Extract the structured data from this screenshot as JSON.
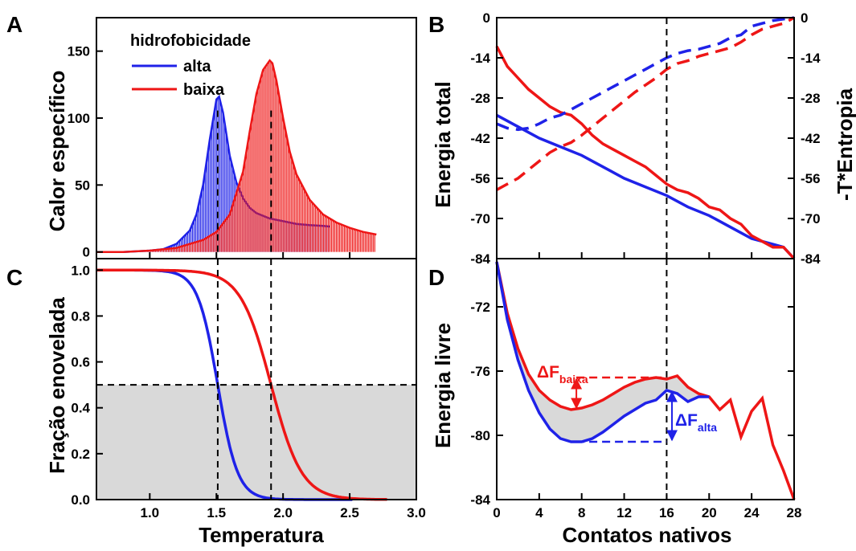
{
  "colors": {
    "blue": "#1f22e8",
    "red": "#ee1616",
    "shade": "#d9d9d9"
  },
  "chart_data": [
    {
      "panel": "A",
      "type": "area",
      "xlabel": "Temperatura",
      "ylabel": "Calor específico",
      "xlim": [
        0.6,
        3.0
      ],
      "ylim": [
        -5,
        175
      ],
      "yticks": [
        0,
        50,
        100,
        150
      ],
      "xticks": [
        1.0,
        1.5,
        2.0,
        2.5,
        3.0
      ],
      "xtick_labels_shown": false,
      "legend": {
        "title": "hidrofobicidade",
        "placement": "top-left"
      },
      "series": [
        {
          "name": "alta",
          "color": "blue",
          "peak_x": 1.51,
          "x": [
            0.6,
            0.8,
            1.0,
            1.1,
            1.2,
            1.3,
            1.35,
            1.4,
            1.45,
            1.5,
            1.52,
            1.55,
            1.6,
            1.65,
            1.7,
            1.75,
            1.8,
            1.9,
            2.0,
            2.1,
            2.2,
            2.3,
            2.35
          ],
          "values": [
            0,
            0,
            1,
            2,
            6,
            16,
            28,
            50,
            84,
            114,
            116,
            104,
            72,
            52,
            40,
            33,
            29,
            25,
            23,
            21,
            20,
            19.5,
            19
          ]
        },
        {
          "name": "baixa",
          "color": "red",
          "peak_x": 1.91,
          "x": [
            0.6,
            0.8,
            1.0,
            1.2,
            1.4,
            1.5,
            1.6,
            1.7,
            1.75,
            1.8,
            1.85,
            1.9,
            1.92,
            1.95,
            2.0,
            2.05,
            2.1,
            2.2,
            2.3,
            2.4,
            2.5,
            2.6,
            2.7
          ],
          "values": [
            0,
            0,
            1,
            3,
            9,
            15,
            28,
            60,
            90,
            118,
            136,
            143,
            141,
            128,
            100,
            75,
            58,
            39,
            28,
            22,
            18,
            15,
            13
          ]
        }
      ],
      "vlines": [
        1.51,
        1.91
      ]
    },
    {
      "panel": "B",
      "type": "line",
      "xlabel": "",
      "ylabel": "Energia total",
      "ylabel_right": "-T*Entropia",
      "xlim": [
        0,
        28
      ],
      "ylim": [
        -84,
        0
      ],
      "yticks": [
        0,
        -14,
        -28,
        -42,
        -56,
        -70,
        -84
      ],
      "xtick_labels_shown": false,
      "vline": 16,
      "series": [
        {
          "name": "alta",
          "style": "solid",
          "color": "blue",
          "x": [
            0,
            2,
            4,
            6,
            8,
            10,
            12,
            14,
            16,
            18,
            20,
            22,
            24,
            26,
            27,
            28
          ],
          "values": [
            -34,
            -38,
            -42,
            -45,
            -48,
            -52,
            -56,
            -59,
            -62,
            -66,
            -69,
            -73,
            -77,
            -79,
            -80,
            -84
          ]
        },
        {
          "name": "baixa",
          "style": "solid",
          "color": "red",
          "x": [
            0,
            1,
            2,
            3,
            4,
            5,
            6,
            7,
            8,
            9,
            10,
            11,
            12,
            13,
            14,
            15,
            16,
            17,
            18,
            19,
            20,
            21,
            22,
            23,
            24,
            25,
            26,
            27,
            28
          ],
          "values": [
            -10,
            -17,
            -21,
            -25,
            -28,
            -31,
            -33,
            -34,
            -37,
            -41,
            -44,
            -46,
            -48,
            -50,
            -52,
            -55,
            -58,
            -60,
            -61,
            -63,
            -66,
            -67,
            -70,
            -72,
            -76,
            -78,
            -80,
            -80,
            -84
          ]
        },
        {
          "name": "alta",
          "style": "dashed",
          "color": "blue",
          "x": [
            0,
            1,
            2,
            3,
            4,
            5,
            6,
            7,
            8,
            9,
            10,
            11,
            12,
            13,
            14,
            15,
            16,
            17,
            18,
            19,
            20,
            21,
            22,
            23,
            24,
            25,
            26,
            27,
            28
          ],
          "values": [
            -37,
            -38.5,
            -39,
            -38.5,
            -37,
            -35,
            -34,
            -32,
            -30,
            -28,
            -26,
            -24,
            -22,
            -20,
            -18,
            -16,
            -14,
            -12.5,
            -11.5,
            -11,
            -10,
            -9,
            -7,
            -6,
            -3,
            -2,
            -1,
            -0.5,
            0
          ]
        },
        {
          "name": "baixa",
          "style": "dashed",
          "color": "red",
          "x": [
            0,
            1,
            2,
            3,
            4,
            5,
            6,
            7,
            8,
            9,
            10,
            11,
            12,
            13,
            14,
            15,
            16,
            17,
            18,
            19,
            20,
            21,
            22,
            23,
            24,
            25,
            26,
            27,
            28
          ],
          "values": [
            -60,
            -58,
            -56,
            -53,
            -50,
            -47,
            -45,
            -43.5,
            -41,
            -38,
            -35,
            -32,
            -29,
            -26,
            -23.5,
            -21,
            -18,
            -16,
            -15,
            -13.5,
            -12.5,
            -11.5,
            -10.5,
            -8.5,
            -6,
            -4,
            -3,
            -2,
            0
          ]
        }
      ]
    },
    {
      "panel": "C",
      "type": "line",
      "xlabel": "Temperatura",
      "ylabel": "Fração enovelada",
      "xlim": [
        0.6,
        3.0
      ],
      "ylim": [
        0,
        1.05
      ],
      "yticks": [
        0.0,
        0.2,
        0.4,
        0.6,
        0.8,
        1.0
      ],
      "xticks": [
        1.0,
        1.5,
        2.0,
        2.5,
        3.0
      ],
      "tick_labels_x": [
        "1.0",
        "1.5",
        "2.0",
        "2.5",
        "3.0"
      ],
      "tick_labels_y": [
        "0.0",
        "0.2",
        "0.4",
        "0.6",
        "0.8",
        "1.0"
      ],
      "shaded_below": 0.5,
      "hline": 0.5,
      "vlines": [
        1.51,
        1.91
      ],
      "series": [
        {
          "name": "alta",
          "color": "blue",
          "Tm": 1.51,
          "width": 0.075,
          "xmax": 2.52
        },
        {
          "name": "baixa",
          "color": "red",
          "Tm": 1.91,
          "width": 0.115,
          "xmax": 2.78
        }
      ]
    },
    {
      "panel": "D",
      "type": "line",
      "xlabel": "Contatos nativos",
      "ylabel": "Energia livre",
      "xlim": [
        0,
        28
      ],
      "ylim": [
        -84,
        -69
      ],
      "yticks": [
        -72,
        -76,
        -80,
        -84
      ],
      "xticks": [
        0,
        4,
        8,
        12,
        16,
        20,
        24,
        28
      ],
      "tick_labels_x": [
        "0",
        "4",
        "8",
        "12",
        "16",
        "20",
        "24",
        "28"
      ],
      "tick_labels_y": [
        "-72",
        "-76",
        "-80",
        "-84"
      ],
      "vline": 16,
      "series": [
        {
          "name": "alta",
          "color": "blue",
          "x": [
            0,
            1,
            2,
            3,
            4,
            5,
            6,
            7,
            8,
            9,
            10,
            11,
            12,
            13,
            14,
            15,
            16,
            17,
            18,
            19,
            20
          ],
          "values": [
            -69.2,
            -72.8,
            -75.3,
            -77.2,
            -78.6,
            -79.6,
            -80.2,
            -80.4,
            -80.4,
            -80.2,
            -79.8,
            -79.3,
            -78.8,
            -78.4,
            -78.0,
            -77.8,
            -77.2,
            -77.4,
            -77.9,
            -77.6,
            -77.6
          ]
        },
        {
          "name": "baixa",
          "color": "red",
          "x": [
            0,
            1,
            2,
            3,
            4,
            5,
            6,
            7,
            8,
            9,
            10,
            11,
            12,
            13,
            14,
            15,
            16,
            17,
            18,
            19,
            20,
            21,
            22,
            23,
            24,
            25,
            26,
            27,
            28
          ],
          "values": [
            -69.2,
            -72.4,
            -74.6,
            -76.2,
            -77.2,
            -77.8,
            -78.2,
            -78.4,
            -78.3,
            -78.1,
            -77.8,
            -77.4,
            -77.0,
            -76.7,
            -76.5,
            -76.4,
            -76.5,
            -76.3,
            -77.0,
            -77.4,
            -77.6,
            -78.4,
            -77.8,
            -80.1,
            -78.5,
            -77.7,
            -80.6,
            -82.2,
            -84.0
          ]
        }
      ],
      "annotations": [
        {
          "label_main": "ΔF",
          "label_sub": "baixa",
          "color": "red",
          "x_arrow": 7.5,
          "y_from": -76.4,
          "y_to": -78.4,
          "dash_from": 7.5,
          "dash_to": 16
        },
        {
          "label_main": "ΔF",
          "label_sub": "alta",
          "color": "blue",
          "x_arrow": 16.5,
          "y_from": -80.4,
          "y_to": -77.2,
          "dash_from": 7.5,
          "dash_to": 16
        }
      ]
    }
  ]
}
